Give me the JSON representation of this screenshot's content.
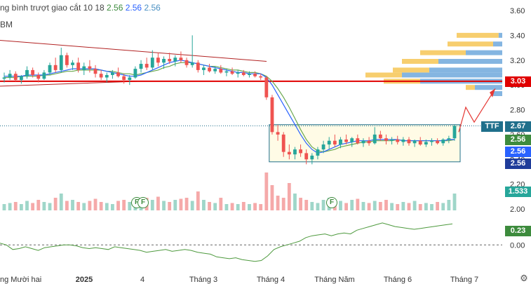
{
  "legend": {
    "ma_title": "ng bình trượt giao cắt",
    "ma_params": "10 18",
    "ma_val1": "2.56",
    "ma_val2": "2.56",
    "ma_val3": "2.56",
    "vol_label": "BM"
  },
  "colors": {
    "up": "#26a69a",
    "down": "#ef5350",
    "ma_fast": "#2962ff",
    "ma_slow": "#6aa84f",
    "support": "#e00000",
    "trend": "#b22222",
    "box": "#1f6f8b",
    "vp_up": "#f6c655",
    "vp_down": "#6fa8dc",
    "oscillator": "#4e9a3e"
  },
  "price_badges": {
    "level_303": "3.03",
    "ttf_tag": "TTF",
    "level_267": "2.67",
    "ma1": "2.56",
    "ma2": "2.56",
    "ma3": "2.56",
    "volume": "1.533",
    "osc": "0.23"
  },
  "event_markers": [
    "F",
    "F",
    "F"
  ],
  "chart_data": [
    {
      "type": "candlestick",
      "title": "",
      "ylim": [
        2.0,
        3.6
      ],
      "y_ticks": [
        "3.60",
        "3.40",
        "3.20",
        "3.00",
        "2.80",
        "2.60",
        "2.40",
        "2.20",
        "2.00"
      ],
      "x_ticks": [
        "ng Mười hai",
        "2025",
        "4",
        "Tháng 3",
        "Tháng 4",
        "Tháng Năm",
        "Tháng 6",
        "Tháng 7"
      ],
      "support_level": 3.03,
      "last_price": 2.67,
      "accumulation_range": [
        2.38,
        2.68
      ],
      "ohlc": [
        [
          3.05,
          3.1,
          3.02,
          3.06
        ],
        [
          3.06,
          3.12,
          3.04,
          3.09
        ],
        [
          3.09,
          3.11,
          3.03,
          3.04
        ],
        [
          3.04,
          3.08,
          3.01,
          3.07
        ],
        [
          3.07,
          3.15,
          3.05,
          3.12
        ],
        [
          3.12,
          3.14,
          3.06,
          3.08
        ],
        [
          3.08,
          3.1,
          3.02,
          3.05
        ],
        [
          3.05,
          3.12,
          3.04,
          3.1
        ],
        [
          3.1,
          3.18,
          3.08,
          3.16
        ],
        [
          3.16,
          3.22,
          3.1,
          3.12
        ],
        [
          3.12,
          3.3,
          3.1,
          3.24
        ],
        [
          3.24,
          3.26,
          3.14,
          3.16
        ],
        [
          3.16,
          3.2,
          3.12,
          3.18
        ],
        [
          3.18,
          3.22,
          3.1,
          3.12
        ],
        [
          3.12,
          3.18,
          3.08,
          3.15
        ],
        [
          3.15,
          3.2,
          3.1,
          3.13
        ],
        [
          3.13,
          3.16,
          3.06,
          3.09
        ],
        [
          3.09,
          3.12,
          3.04,
          3.06
        ],
        [
          3.06,
          3.1,
          3.02,
          3.08
        ],
        [
          3.08,
          3.12,
          3.05,
          3.1
        ],
        [
          3.1,
          3.14,
          3.06,
          3.07
        ],
        [
          3.07,
          3.09,
          3.01,
          3.04
        ],
        [
          3.04,
          3.08,
          3.0,
          3.06
        ],
        [
          3.06,
          3.15,
          3.05,
          3.13
        ],
        [
          3.13,
          3.2,
          3.1,
          3.17
        ],
        [
          3.17,
          3.22,
          3.12,
          3.14
        ],
        [
          3.14,
          3.28,
          3.12,
          3.22
        ],
        [
          3.22,
          3.26,
          3.15,
          3.18
        ],
        [
          3.18,
          3.23,
          3.13,
          3.21
        ],
        [
          3.21,
          3.26,
          3.17,
          3.19
        ],
        [
          3.19,
          3.24,
          3.15,
          3.22
        ],
        [
          3.22,
          3.27,
          3.18,
          3.2
        ],
        [
          3.2,
          3.22,
          3.14,
          3.16
        ],
        [
          3.16,
          3.4,
          3.14,
          3.18
        ],
        [
          3.18,
          3.2,
          3.1,
          3.12
        ],
        [
          3.12,
          3.16,
          3.08,
          3.14
        ],
        [
          3.14,
          3.17,
          3.1,
          3.11
        ],
        [
          3.11,
          3.15,
          3.09,
          3.13
        ],
        [
          3.13,
          3.16,
          3.09,
          3.1
        ],
        [
          3.1,
          3.13,
          3.07,
          3.11
        ],
        [
          3.11,
          3.14,
          3.08,
          3.09
        ],
        [
          3.09,
          3.12,
          3.06,
          3.1
        ],
        [
          3.1,
          3.12,
          3.07,
          3.08
        ],
        [
          3.08,
          3.11,
          3.06,
          3.09
        ],
        [
          3.09,
          3.11,
          3.06,
          3.07
        ],
        [
          3.07,
          3.09,
          3.04,
          3.06
        ],
        [
          3.06,
          3.07,
          2.88,
          2.9
        ],
        [
          2.9,
          2.92,
          2.6,
          2.62
        ],
        [
          2.62,
          2.68,
          2.55,
          2.6
        ],
        [
          2.6,
          2.62,
          2.42,
          2.46
        ],
        [
          2.46,
          2.52,
          2.4,
          2.44
        ],
        [
          2.44,
          2.5,
          2.4,
          2.48
        ],
        [
          2.48,
          2.52,
          2.42,
          2.45
        ],
        [
          2.45,
          2.48,
          2.36,
          2.4
        ],
        [
          2.4,
          2.45,
          2.36,
          2.43
        ],
        [
          2.43,
          2.5,
          2.4,
          2.48
        ],
        [
          2.48,
          2.55,
          2.45,
          2.52
        ],
        [
          2.52,
          2.58,
          2.48,
          2.55
        ],
        [
          2.55,
          2.6,
          2.5,
          2.52
        ],
        [
          2.52,
          2.58,
          2.49,
          2.56
        ],
        [
          2.56,
          2.6,
          2.52,
          2.54
        ],
        [
          2.54,
          2.58,
          2.5,
          2.57
        ],
        [
          2.57,
          2.6,
          2.52,
          2.53
        ],
        [
          2.53,
          2.57,
          2.5,
          2.55
        ],
        [
          2.55,
          2.58,
          2.51,
          2.53
        ],
        [
          2.53,
          2.66,
          2.52,
          2.6
        ],
        [
          2.6,
          2.63,
          2.55,
          2.57
        ],
        [
          2.57,
          2.6,
          2.52,
          2.55
        ],
        [
          2.55,
          2.58,
          2.52,
          2.56
        ],
        [
          2.56,
          2.59,
          2.52,
          2.54
        ],
        [
          2.54,
          2.58,
          2.51,
          2.56
        ],
        [
          2.56,
          2.58,
          2.51,
          2.53
        ],
        [
          2.53,
          2.56,
          2.5,
          2.55
        ],
        [
          2.55,
          2.58,
          2.51,
          2.52
        ],
        [
          2.52,
          2.56,
          2.5,
          2.54
        ],
        [
          2.54,
          2.57,
          2.51,
          2.55
        ],
        [
          2.55,
          2.57,
          2.52,
          2.53
        ],
        [
          2.53,
          2.57,
          2.51,
          2.56
        ],
        [
          2.56,
          2.59,
          2.53,
          2.57
        ],
        [
          2.57,
          2.68,
          2.55,
          2.67
        ]
      ],
      "ma_fast": [
        3.07,
        3.07,
        3.07,
        3.07,
        3.08,
        3.08,
        3.08,
        3.08,
        3.09,
        3.1,
        3.11,
        3.12,
        3.13,
        3.13,
        3.13,
        3.13,
        3.13,
        3.12,
        3.11,
        3.1,
        3.09,
        3.08,
        3.07,
        3.07,
        3.08,
        3.1,
        3.12,
        3.14,
        3.16,
        3.18,
        3.19,
        3.2,
        3.19,
        3.18,
        3.17,
        3.16,
        3.15,
        3.14,
        3.13,
        3.12,
        3.11,
        3.1,
        3.1,
        3.09,
        3.09,
        3.09,
        3.06,
        3.0,
        2.92,
        2.84,
        2.76,
        2.68,
        2.6,
        2.53,
        2.48,
        2.45,
        2.46,
        2.48,
        2.5,
        2.52,
        2.53,
        2.54,
        2.55,
        2.55,
        2.55,
        2.56,
        2.56,
        2.56,
        2.56,
        2.56,
        2.55,
        2.55,
        2.55,
        2.55,
        2.55,
        2.55,
        2.55,
        2.55,
        2.56,
        2.56
      ],
      "ma_slow": [
        3.06,
        3.06,
        3.06,
        3.07,
        3.07,
        3.07,
        3.07,
        3.08,
        3.08,
        3.09,
        3.1,
        3.11,
        3.11,
        3.12,
        3.12,
        3.12,
        3.12,
        3.12,
        3.11,
        3.11,
        3.1,
        3.09,
        3.09,
        3.08,
        3.09,
        3.1,
        3.11,
        3.12,
        3.14,
        3.15,
        3.17,
        3.18,
        3.18,
        3.18,
        3.17,
        3.16,
        3.15,
        3.15,
        3.14,
        3.13,
        3.12,
        3.12,
        3.11,
        3.1,
        3.1,
        3.09,
        3.07,
        3.03,
        2.97,
        2.9,
        2.82,
        2.73,
        2.64,
        2.56,
        2.5,
        2.47,
        2.46,
        2.47,
        2.48,
        2.5,
        2.51,
        2.52,
        2.53,
        2.54,
        2.54,
        2.55,
        2.55,
        2.55,
        2.55,
        2.56,
        2.55,
        2.55,
        2.55,
        2.55,
        2.55,
        2.55,
        2.55,
        2.55,
        2.55,
        2.56
      ],
      "volume": [
        0.3,
        0.35,
        0.4,
        0.3,
        0.45,
        0.35,
        0.5,
        0.4,
        0.35,
        0.6,
        0.8,
        0.45,
        0.5,
        0.4,
        0.35,
        0.45,
        0.55,
        0.4,
        0.35,
        0.3,
        0.45,
        0.5,
        0.4,
        0.35,
        0.55,
        0.6,
        0.5,
        0.65,
        0.45,
        0.4,
        0.5,
        0.55,
        0.6,
        0.45,
        0.9,
        0.5,
        0.4,
        0.35,
        0.6,
        0.3,
        0.35,
        0.3,
        0.4,
        0.3,
        0.35,
        0.3,
        1.8,
        1.2,
        0.7,
        0.6,
        1.3,
        0.8,
        0.6,
        0.5,
        0.4,
        0.35,
        0.5,
        0.6,
        0.4,
        0.45,
        0.35,
        0.5,
        0.55,
        0.4,
        0.35,
        0.45,
        0.4,
        0.5,
        0.35,
        0.3,
        0.4,
        0.35,
        0.45,
        0.3,
        0.35,
        0.3,
        0.4,
        0.35,
        0.5,
        0.8
      ],
      "oscillator": [
        0.02,
        0.0,
        -0.05,
        -0.04,
        -0.02,
        -0.04,
        -0.06,
        -0.03,
        -0.02,
        -0.01,
        0.0,
        0.0,
        -0.01,
        -0.03,
        -0.04,
        -0.03,
        -0.04,
        -0.05,
        -0.02,
        -0.03,
        -0.04,
        -0.05,
        -0.06,
        -0.08,
        -0.07,
        -0.06,
        -0.05,
        -0.07,
        -0.06,
        -0.05,
        -0.06,
        -0.08,
        -0.09,
        -0.1,
        -0.13,
        -0.14,
        -0.15,
        -0.14,
        -0.16,
        -0.17,
        -0.18,
        -0.17,
        -0.12,
        -0.05,
        -0.02,
        0.0,
        0.02,
        0.04,
        0.08,
        0.1,
        0.11,
        0.12,
        0.1,
        0.12,
        0.13,
        0.12,
        0.16,
        0.18,
        0.2,
        0.22,
        0.24,
        0.22,
        0.2,
        0.19,
        0.18,
        0.17,
        0.18,
        0.19,
        0.2,
        0.21,
        0.22,
        0.23
      ],
      "volume_profile": [
        {
          "price": 3.4,
          "up": 0.25,
          "down": 0.02
        },
        {
          "price": 3.33,
          "up": 0.3,
          "down": 0.05
        },
        {
          "price": 3.26,
          "up": 0.45,
          "down": 0.2
        },
        {
          "price": 3.19,
          "up": 0.55,
          "down": 0.35
        },
        {
          "price": 3.12,
          "up": 0.6,
          "down": 0.4
        },
        {
          "price": 3.08,
          "up": 0.75,
          "down": 0.55
        },
        {
          "price": 3.03,
          "up": 0.65,
          "down": 0.45
        },
        {
          "price": 2.98,
          "up": 0.2,
          "down": 0.15
        },
        {
          "price": 2.93,
          "up": 0.05,
          "down": 0.05
        }
      ]
    }
  ]
}
